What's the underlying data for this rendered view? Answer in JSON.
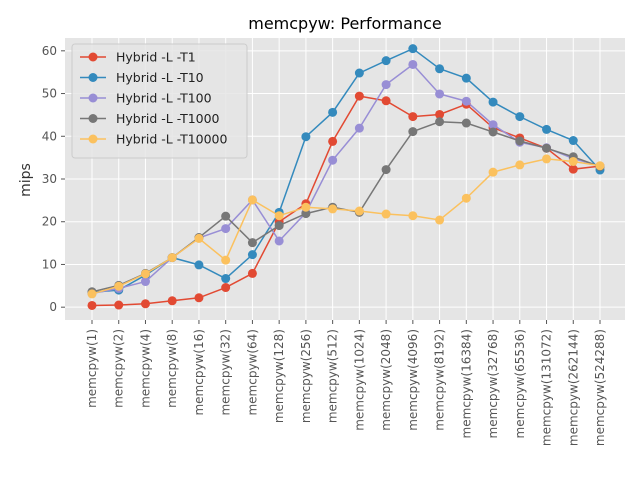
{
  "chart_data": {
    "type": "line",
    "title": "memcpyw: Performance",
    "xlabel": "",
    "ylabel": "mips",
    "ylim": [
      -3,
      63
    ],
    "yticks": [
      0,
      10,
      20,
      30,
      40,
      50,
      60
    ],
    "grid": true,
    "legend_position": "top-left",
    "categories": [
      "memcpyw(1)",
      "memcpyw(2)",
      "memcpyw(4)",
      "memcpyw(8)",
      "memcpyw(16)",
      "memcpyw(32)",
      "memcpyw(64)",
      "memcpyw(128)",
      "memcpyw(256)",
      "memcpyw(512)",
      "memcpyw(1024)",
      "memcpyw(2048)",
      "memcpyw(4096)",
      "memcpyw(8192)",
      "memcpyw(16384)",
      "memcpyw(32768)",
      "memcpyw(65536)",
      "memcpyw(131072)",
      "memcpyw(262144)",
      "memcpyw(524288)"
    ],
    "series": [
      {
        "name": "Hybrid -L -T1",
        "color": "#E24A33",
        "values": [
          0.4,
          0.5,
          0.8,
          1.5,
          2.2,
          4.6,
          7.9,
          20.0,
          24.2,
          38.8,
          49.4,
          48.3,
          44.6,
          45.1,
          47.5,
          42.0,
          39.6,
          37.2,
          32.3,
          33.0
        ]
      },
      {
        "name": "Hybrid -L -T10",
        "color": "#348ABD",
        "values": [
          3.5,
          4.0,
          7.5,
          11.6,
          9.9,
          6.7,
          12.3,
          22.2,
          39.9,
          45.6,
          54.8,
          57.7,
          60.5,
          55.8,
          53.6,
          48.0,
          44.6,
          41.6,
          39.0,
          32.1
        ]
      },
      {
        "name": "Hybrid -L -T100",
        "color": "#988ED5",
        "values": [
          3.2,
          4.4,
          6.0,
          11.6,
          16.2,
          18.4,
          25.1,
          15.5,
          22.1,
          34.4,
          41.9,
          52.1,
          56.8,
          49.9,
          48.2,
          42.7,
          38.6,
          37.3,
          34.8,
          33.0
        ]
      },
      {
        "name": "Hybrid -L -T1000",
        "color": "#777777",
        "values": [
          3.6,
          5.1,
          7.9,
          11.6,
          16.3,
          21.3,
          15.1,
          19.1,
          21.9,
          23.4,
          22.2,
          32.2,
          41.1,
          43.4,
          43.1,
          41.0,
          38.9,
          37.2,
          35.2,
          32.9
        ]
      },
      {
        "name": "Hybrid -L -T10000",
        "color": "#FBC15E",
        "values": [
          3.1,
          4.9,
          7.8,
          11.6,
          16.1,
          11.0,
          25.1,
          21.4,
          23.4,
          23.0,
          22.5,
          21.8,
          21.4,
          20.4,
          25.5,
          31.6,
          33.3,
          34.7,
          34.1,
          33.1
        ]
      }
    ]
  }
}
